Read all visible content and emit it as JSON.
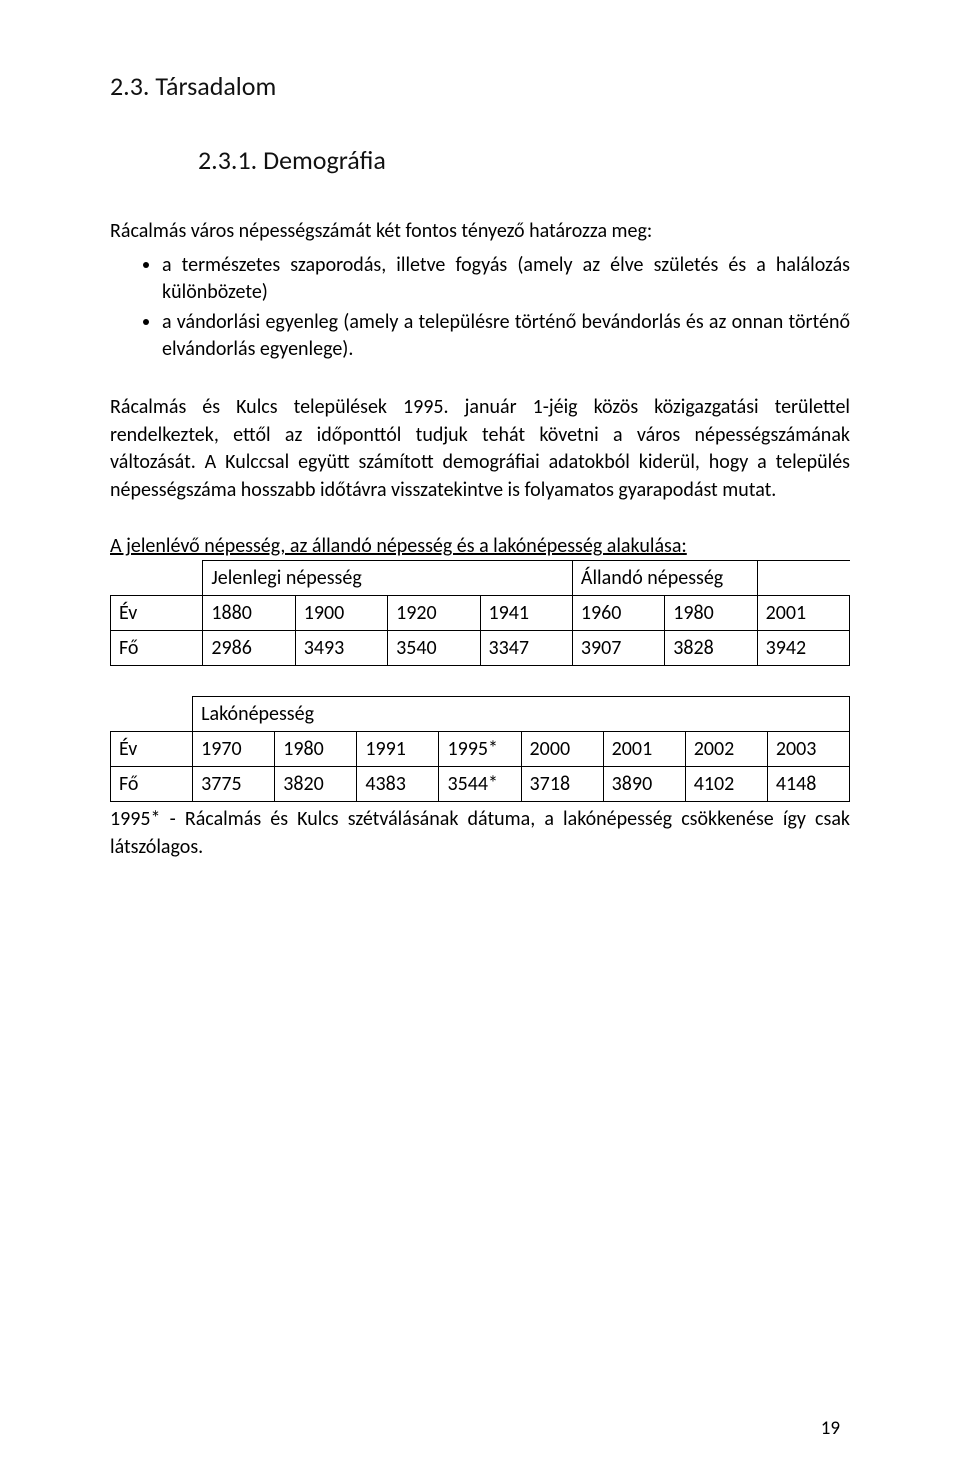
{
  "headings": {
    "h1": "2.3. Társadalom",
    "h2": "2.3.1. Demográfia"
  },
  "intro": "Rácalmás város népességszámát két fontos tényező határozza meg:",
  "bullets": [
    "a természetes szaporodás, illetve fogyás (amely az élve születés és a halálozás különbözete)",
    "a vándorlási egyenleg (amely a településre történő bevándorlás és az onnan történő elvándorlás egyenlege)."
  ],
  "para2": "Rácalmás és Kulcs települések 1995. január 1-jéig közös közigazgatási területtel rendelkeztek, ettől az időponttól tudjuk tehát követni a város népességszámának változását. A Kulccsal együtt számított demográfiai adatokból kiderül, hogy a település népességszáma hosszabb időtávra visszatekintve is folyamatos gyarapodást mutat.",
  "table1": {
    "caption": "A jelenlévő népesség, az állandó népesség és a lakónépesség alakulása:",
    "header_left": "Jelenlegi népesség",
    "header_right": "Állandó népesség",
    "row_label_year": "Év",
    "row_label_count": "Fő",
    "years": [
      "1880",
      "1900",
      "1920",
      "1941",
      "1960",
      "1980",
      "2001"
    ],
    "counts": [
      "2986",
      "3493",
      "3540",
      "3347",
      "3907",
      "3828",
      "3942"
    ]
  },
  "table2": {
    "header": "Lakónépesség",
    "row_label_year": "Év",
    "row_label_count": "Fő",
    "years": [
      "1970",
      "1980",
      "1991",
      "1995*",
      "2000",
      "2001",
      "2002",
      "2003"
    ],
    "counts": [
      "3775",
      "3820",
      "4383",
      "3544*",
      "3718",
      "3890",
      "4102",
      "4148"
    ]
  },
  "note": "1995* - Rácalmás és Kulcs szétválásának dátuma, a lakónépesség csökkenése így csak látszólagos.",
  "page_number": "19"
}
